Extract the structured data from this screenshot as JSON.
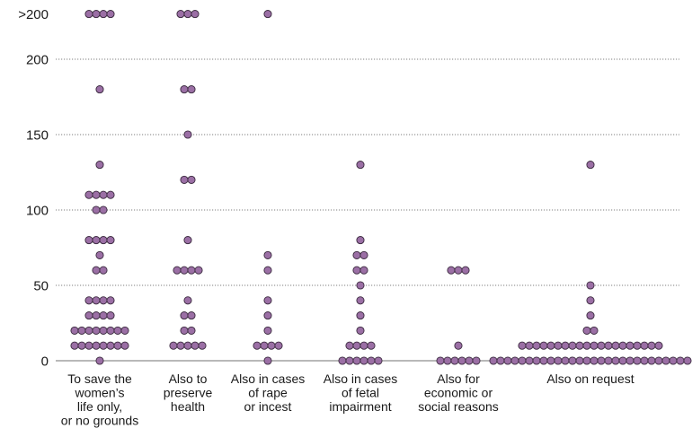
{
  "chart_data": {
    "type": "scatter",
    "subtype": "dot-plot (beeswarm)",
    "y_ticks": [
      {
        "value": 0,
        "label": "0"
      },
      {
        "value": 50,
        "label": "50"
      },
      {
        "value": 100,
        "label": "100"
      },
      {
        "value": 150,
        "label": "150"
      },
      {
        "value": 200,
        "label": "200"
      },
      {
        "value": 230,
        "label": ">200"
      }
    ],
    "ylim": [
      0,
      230
    ],
    "grid": true,
    "colors": {
      "dot_fill": "#9b6fa5",
      "dot_stroke": "#3a2a3e",
      "grid": "#555555"
    },
    "categories": [
      {
        "lines": [
          "To save the",
          "women’s",
          "life only,",
          "or no grounds"
        ],
        "bins": [
          {
            "value": 230,
            "count": 4
          },
          {
            "value": 180,
            "count": 1
          },
          {
            "value": 130,
            "count": 1
          },
          {
            "value": 110,
            "count": 4
          },
          {
            "value": 100,
            "count": 2
          },
          {
            "value": 80,
            "count": 4
          },
          {
            "value": 70,
            "count": 1
          },
          {
            "value": 60,
            "count": 2
          },
          {
            "value": 40,
            "count": 4
          },
          {
            "value": 30,
            "count": 4
          },
          {
            "value": 20,
            "count": 8
          },
          {
            "value": 10,
            "count": 8
          },
          {
            "value": 0,
            "count": 1
          }
        ]
      },
      {
        "lines": [
          "Also to",
          "preserve",
          "health"
        ],
        "bins": [
          {
            "value": 230,
            "count": 3
          },
          {
            "value": 180,
            "count": 2
          },
          {
            "value": 150,
            "count": 1
          },
          {
            "value": 120,
            "count": 2
          },
          {
            "value": 80,
            "count": 1
          },
          {
            "value": 60,
            "count": 4
          },
          {
            "value": 40,
            "count": 1
          },
          {
            "value": 30,
            "count": 2
          },
          {
            "value": 20,
            "count": 2
          },
          {
            "value": 10,
            "count": 5
          }
        ]
      },
      {
        "lines": [
          "Also in cases",
          "of rape",
          "or incest"
        ],
        "bins": [
          {
            "value": 230,
            "count": 1
          },
          {
            "value": 70,
            "count": 1
          },
          {
            "value": 60,
            "count": 1
          },
          {
            "value": 40,
            "count": 1
          },
          {
            "value": 30,
            "count": 1
          },
          {
            "value": 20,
            "count": 1
          },
          {
            "value": 10,
            "count": 4
          },
          {
            "value": 0,
            "count": 1
          }
        ]
      },
      {
        "lines": [
          "Also in cases",
          "of fetal",
          "impairment"
        ],
        "bins": [
          {
            "value": 130,
            "count": 1
          },
          {
            "value": 80,
            "count": 1
          },
          {
            "value": 70,
            "count": 2
          },
          {
            "value": 60,
            "count": 2
          },
          {
            "value": 50,
            "count": 1
          },
          {
            "value": 40,
            "count": 1
          },
          {
            "value": 30,
            "count": 1
          },
          {
            "value": 20,
            "count": 1
          },
          {
            "value": 10,
            "count": 4
          },
          {
            "value": 0,
            "count": 6
          }
        ]
      },
      {
        "lines": [
          "Also for",
          "economic or",
          "social reasons"
        ],
        "bins": [
          {
            "value": 60,
            "count": 3
          },
          {
            "value": 10,
            "count": 1
          },
          {
            "value": 0,
            "count": 6
          }
        ]
      },
      {
        "lines": [
          "Also on request"
        ],
        "bins": [
          {
            "value": 130,
            "count": 1
          },
          {
            "value": 50,
            "count": 1
          },
          {
            "value": 40,
            "count": 1
          },
          {
            "value": 30,
            "count": 1
          },
          {
            "value": 20,
            "count": 2
          },
          {
            "value": 10,
            "count": 20
          },
          {
            "value": 0,
            "count": 28
          }
        ]
      }
    ]
  }
}
